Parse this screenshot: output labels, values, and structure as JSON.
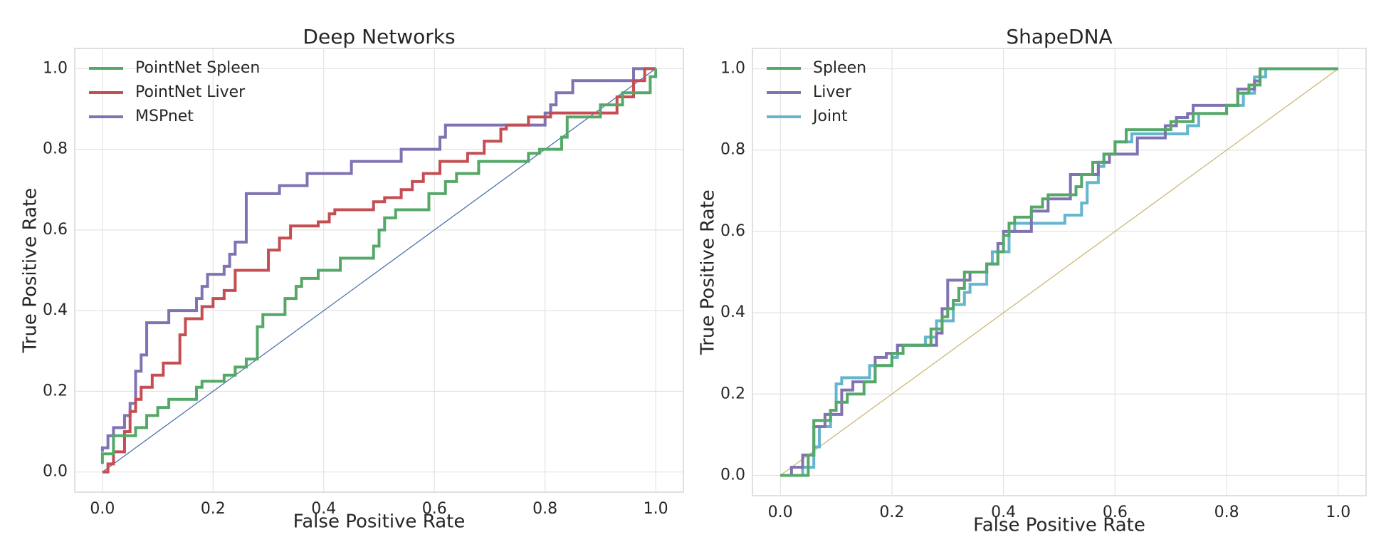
{
  "chart_data": [
    {
      "type": "line",
      "title": "Deep Networks",
      "xlabel": "False Positive Rate",
      "ylabel": "True Positive Rate",
      "xlim": [
        -0.05,
        1.05
      ],
      "ylim": [
        -0.05,
        1.05
      ],
      "xticks": [
        {
          "value": 0,
          "label": "0.0"
        },
        0.2,
        0.4,
        0.6,
        0.8,
        {
          "value": 1,
          "label": "1.0"
        }
      ],
      "yticks": [
        {
          "value": 0,
          "label": "0.0"
        },
        0.2,
        0.4,
        0.6,
        0.8,
        {
          "value": 1,
          "label": "1.0"
        }
      ],
      "grid": true,
      "legend": "upper left",
      "series": [
        {
          "name": "PointNet Spleen",
          "color": "#55a868",
          "x": [
            0,
            0,
            0.02,
            0.02,
            0.06,
            0.06,
            0.08,
            0.08,
            0.1,
            0.1,
            0.12,
            0.12,
            0.17,
            0.17,
            0.18,
            0.18,
            0.22,
            0.22,
            0.24,
            0.24,
            0.26,
            0.26,
            0.28,
            0.28,
            0.29,
            0.29,
            0.33,
            0.33,
            0.35,
            0.35,
            0.36,
            0.36,
            0.39,
            0.39,
            0.43,
            0.43,
            0.49,
            0.49,
            0.5,
            0.5,
            0.51,
            0.51,
            0.53,
            0.53,
            0.59,
            0.59,
            0.62,
            0.62,
            0.64,
            0.64,
            0.68,
            0.68,
            0.77,
            0.77,
            0.79,
            0.79,
            0.83,
            0.83,
            0.84,
            0.84,
            0.9,
            0.9,
            0.94,
            0.94,
            0.99,
            0.99,
            1,
            1
          ],
          "values": [
            0.02,
            0.045,
            0.045,
            0.09,
            0.09,
            0.11,
            0.11,
            0.14,
            0.14,
            0.16,
            0.16,
            0.18,
            0.18,
            0.21,
            0.21,
            0.225,
            0.225,
            0.24,
            0.24,
            0.26,
            0.26,
            0.28,
            0.28,
            0.36,
            0.36,
            0.39,
            0.39,
            0.43,
            0.43,
            0.46,
            0.46,
            0.48,
            0.48,
            0.5,
            0.5,
            0.53,
            0.53,
            0.56,
            0.56,
            0.6,
            0.6,
            0.63,
            0.63,
            0.65,
            0.65,
            0.69,
            0.69,
            0.72,
            0.72,
            0.74,
            0.74,
            0.77,
            0.77,
            0.79,
            0.79,
            0.8,
            0.8,
            0.83,
            0.83,
            0.88,
            0.88,
            0.91,
            0.91,
            0.94,
            0.94,
            0.98,
            0.98,
            1
          ]
        },
        {
          "name": "PointNet Liver",
          "color": "#c44e52",
          "x": [
            0,
            0.01,
            0.01,
            0.02,
            0.02,
            0.04,
            0.04,
            0.05,
            0.05,
            0.06,
            0.06,
            0.07,
            0.07,
            0.09,
            0.09,
            0.11,
            0.11,
            0.14,
            0.14,
            0.15,
            0.15,
            0.18,
            0.18,
            0.2,
            0.2,
            0.22,
            0.22,
            0.24,
            0.24,
            0.3,
            0.3,
            0.32,
            0.32,
            0.34,
            0.34,
            0.39,
            0.39,
            0.41,
            0.41,
            0.42,
            0.42,
            0.49,
            0.49,
            0.51,
            0.51,
            0.54,
            0.54,
            0.56,
            0.56,
            0.58,
            0.58,
            0.61,
            0.61,
            0.66,
            0.66,
            0.69,
            0.69,
            0.72,
            0.72,
            0.73,
            0.73,
            0.77,
            0.77,
            0.81,
            0.81,
            0.93,
            0.93,
            0.96,
            0.96,
            0.98,
            0.98,
            1
          ],
          "values": [
            0,
            0,
            0.02,
            0.02,
            0.05,
            0.05,
            0.1,
            0.1,
            0.15,
            0.15,
            0.18,
            0.18,
            0.21,
            0.21,
            0.24,
            0.24,
            0.27,
            0.27,
            0.34,
            0.34,
            0.38,
            0.38,
            0.41,
            0.41,
            0.43,
            0.43,
            0.45,
            0.45,
            0.5,
            0.5,
            0.55,
            0.55,
            0.58,
            0.58,
            0.61,
            0.61,
            0.62,
            0.62,
            0.64,
            0.64,
            0.65,
            0.65,
            0.67,
            0.67,
            0.68,
            0.68,
            0.7,
            0.7,
            0.72,
            0.72,
            0.74,
            0.74,
            0.77,
            0.77,
            0.79,
            0.79,
            0.82,
            0.82,
            0.85,
            0.85,
            0.86,
            0.86,
            0.88,
            0.88,
            0.89,
            0.89,
            0.93,
            0.93,
            0.97,
            0.97,
            1,
            1
          ]
        },
        {
          "name": "MSPnet",
          "color": "#8172b2",
          "x": [
            0,
            0,
            0.01,
            0.01,
            0.02,
            0.02,
            0.04,
            0.04,
            0.05,
            0.05,
            0.06,
            0.06,
            0.07,
            0.07,
            0.08,
            0.08,
            0.12,
            0.12,
            0.17,
            0.17,
            0.18,
            0.18,
            0.19,
            0.19,
            0.22,
            0.22,
            0.23,
            0.23,
            0.24,
            0.24,
            0.26,
            0.26,
            0.32,
            0.32,
            0.37,
            0.37,
            0.45,
            0.45,
            0.54,
            0.54,
            0.61,
            0.61,
            0.62,
            0.62,
            0.8,
            0.8,
            0.81,
            0.81,
            0.82,
            0.82,
            0.85,
            0.85,
            0.96,
            0.96,
            1
          ],
          "values": [
            0.05,
            0.06,
            0.06,
            0.09,
            0.09,
            0.11,
            0.11,
            0.14,
            0.14,
            0.17,
            0.17,
            0.25,
            0.25,
            0.29,
            0.29,
            0.37,
            0.37,
            0.4,
            0.4,
            0.43,
            0.43,
            0.46,
            0.46,
            0.49,
            0.49,
            0.51,
            0.51,
            0.54,
            0.54,
            0.57,
            0.57,
            0.69,
            0.69,
            0.71,
            0.71,
            0.74,
            0.74,
            0.77,
            0.77,
            0.8,
            0.8,
            0.83,
            0.83,
            0.86,
            0.86,
            0.89,
            0.89,
            0.91,
            0.91,
            0.94,
            0.94,
            0.97,
            0.97,
            1,
            1
          ]
        },
        {
          "color": "#4c72b0",
          "x": [
            0,
            1
          ],
          "values": [
            0,
            1
          ]
        }
      ]
    },
    {
      "type": "line",
      "title": "ShapeDNA",
      "xlabel": "False Positive Rate",
      "ylabel": "True Positive Rate",
      "xlim": [
        -0.05,
        1.05
      ],
      "ylim": [
        -0.05,
        1.05
      ],
      "xticks": [
        {
          "value": 0,
          "label": "0.0"
        },
        0.2,
        0.4,
        0.6,
        0.8,
        {
          "value": 1,
          "label": "1.0"
        }
      ],
      "yticks": [
        {
          "value": 0,
          "label": "0.0"
        },
        0.2,
        0.4,
        0.6,
        0.8,
        {
          "value": 1,
          "label": "1.0"
        }
      ],
      "grid": true,
      "legend": "upper left",
      "series": [
        {
          "name": "Spleen",
          "color": "#55a868",
          "x": [
            0,
            0.05,
            0.05,
            0.06,
            0.06,
            0.09,
            0.09,
            0.1,
            0.1,
            0.12,
            0.12,
            0.15,
            0.15,
            0.17,
            0.17,
            0.2,
            0.2,
            0.22,
            0.22,
            0.27,
            0.27,
            0.29,
            0.29,
            0.3,
            0.3,
            0.31,
            0.31,
            0.32,
            0.32,
            0.33,
            0.33,
            0.37,
            0.37,
            0.39,
            0.39,
            0.4,
            0.4,
            0.41,
            0.41,
            0.42,
            0.42,
            0.45,
            0.45,
            0.47,
            0.47,
            0.48,
            0.48,
            0.53,
            0.53,
            0.54,
            0.54,
            0.56,
            0.56,
            0.58,
            0.58,
            0.6,
            0.6,
            0.62,
            0.62,
            0.7,
            0.7,
            0.74,
            0.74,
            0.8,
            0.8,
            0.82,
            0.82,
            0.84,
            0.84,
            0.86,
            0.86,
            1
          ],
          "values": [
            0,
            0,
            0.05,
            0.05,
            0.135,
            0.135,
            0.16,
            0.16,
            0.18,
            0.18,
            0.2,
            0.2,
            0.23,
            0.23,
            0.27,
            0.27,
            0.3,
            0.3,
            0.32,
            0.32,
            0.36,
            0.36,
            0.39,
            0.39,
            0.41,
            0.41,
            0.43,
            0.43,
            0.46,
            0.46,
            0.5,
            0.5,
            0.52,
            0.52,
            0.55,
            0.55,
            0.59,
            0.59,
            0.62,
            0.62,
            0.635,
            0.635,
            0.66,
            0.66,
            0.68,
            0.68,
            0.69,
            0.69,
            0.71,
            0.71,
            0.74,
            0.74,
            0.77,
            0.77,
            0.79,
            0.79,
            0.82,
            0.82,
            0.85,
            0.85,
            0.87,
            0.87,
            0.89,
            0.89,
            0.91,
            0.91,
            0.94,
            0.94,
            0.96,
            0.96,
            1,
            1
          ]
        },
        {
          "name": "Liver",
          "color": "#8172b2",
          "x": [
            0,
            0.02,
            0.02,
            0.04,
            0.04,
            0.06,
            0.06,
            0.08,
            0.08,
            0.11,
            0.11,
            0.13,
            0.13,
            0.17,
            0.17,
            0.19,
            0.19,
            0.21,
            0.21,
            0.28,
            0.28,
            0.29,
            0.29,
            0.3,
            0.3,
            0.34,
            0.34,
            0.37,
            0.37,
            0.39,
            0.39,
            0.4,
            0.4,
            0.45,
            0.45,
            0.48,
            0.48,
            0.52,
            0.52,
            0.57,
            0.57,
            0.59,
            0.59,
            0.64,
            0.64,
            0.69,
            0.69,
            0.71,
            0.71,
            0.73,
            0.73,
            0.74,
            0.74,
            0.82,
            0.82,
            0.85,
            0.85,
            0.86,
            0.86,
            1
          ],
          "values": [
            0,
            0,
            0.02,
            0.02,
            0.05,
            0.05,
            0.12,
            0.12,
            0.15,
            0.15,
            0.21,
            0.21,
            0.23,
            0.23,
            0.29,
            0.29,
            0.3,
            0.3,
            0.32,
            0.32,
            0.35,
            0.35,
            0.41,
            0.41,
            0.48,
            0.48,
            0.5,
            0.5,
            0.52,
            0.52,
            0.57,
            0.57,
            0.6,
            0.6,
            0.65,
            0.65,
            0.68,
            0.68,
            0.74,
            0.74,
            0.77,
            0.77,
            0.79,
            0.79,
            0.83,
            0.83,
            0.86,
            0.86,
            0.88,
            0.88,
            0.89,
            0.89,
            0.91,
            0.91,
            0.95,
            0.95,
            0.97,
            0.97,
            1,
            1
          ]
        },
        {
          "name": "Joint",
          "color": "#64b5cd",
          "x": [
            0,
            0.04,
            0.04,
            0.06,
            0.06,
            0.07,
            0.07,
            0.09,
            0.09,
            0.1,
            0.1,
            0.11,
            0.11,
            0.16,
            0.16,
            0.2,
            0.2,
            0.21,
            0.21,
            0.26,
            0.26,
            0.28,
            0.28,
            0.31,
            0.31,
            0.33,
            0.33,
            0.34,
            0.34,
            0.37,
            0.37,
            0.38,
            0.38,
            0.41,
            0.41,
            0.42,
            0.42,
            0.51,
            0.51,
            0.54,
            0.54,
            0.55,
            0.55,
            0.57,
            0.57,
            0.58,
            0.58,
            0.6,
            0.6,
            0.63,
            0.63,
            0.73,
            0.73,
            0.75,
            0.75,
            0.8,
            0.8,
            0.83,
            0.83,
            0.85,
            0.85,
            0.87,
            0.87,
            1
          ],
          "values": [
            0,
            0,
            0.02,
            0.02,
            0.07,
            0.07,
            0.12,
            0.12,
            0.16,
            0.16,
            0.225,
            0.225,
            0.24,
            0.24,
            0.27,
            0.27,
            0.29,
            0.29,
            0.32,
            0.32,
            0.34,
            0.34,
            0.38,
            0.38,
            0.42,
            0.42,
            0.45,
            0.45,
            0.47,
            0.47,
            0.52,
            0.52,
            0.55,
            0.55,
            0.6,
            0.6,
            0.62,
            0.62,
            0.64,
            0.64,
            0.67,
            0.67,
            0.72,
            0.72,
            0.76,
            0.76,
            0.79,
            0.79,
            0.82,
            0.82,
            0.84,
            0.84,
            0.86,
            0.86,
            0.89,
            0.89,
            0.91,
            0.91,
            0.94,
            0.94,
            0.98,
            0.98,
            1,
            1
          ]
        },
        {
          "color": "#ccb974",
          "x": [
            0,
            1
          ],
          "values": [
            0,
            1
          ]
        }
      ]
    }
  ]
}
